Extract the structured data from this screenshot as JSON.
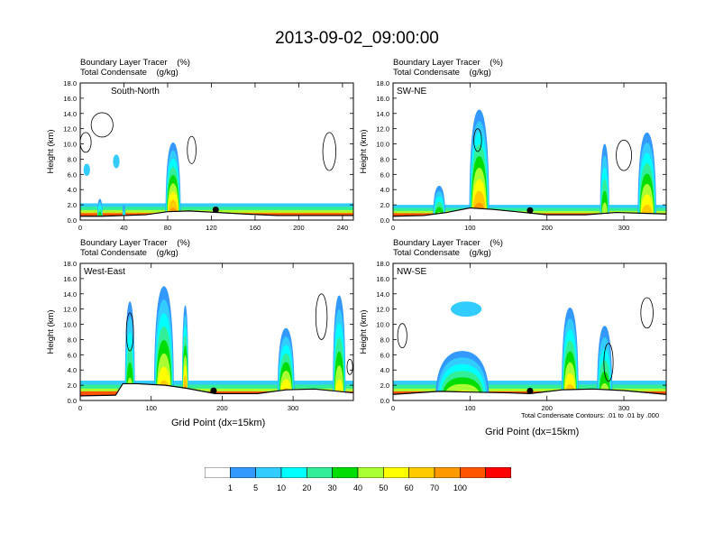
{
  "title": "2013-09-02_09:00:00",
  "chart_data": [
    {
      "type": "heatmap",
      "panel_label": "South-North",
      "header_line1": "Boundary Layer Tracer    (%)",
      "header_line2": "Total Condensate    (g/kg)",
      "ylabel": "Height (km)",
      "xlabel": "",
      "xlim": [
        0,
        250
      ],
      "ylim": [
        0,
        18
      ],
      "x_ticks": [
        0,
        40,
        80,
        120,
        160,
        200,
        240
      ],
      "y_ticks": [
        "0.0",
        "2.0",
        "4.0",
        "6.0",
        "8.0",
        "10.0",
        "12.0",
        "14.0",
        "16.0",
        "18.0"
      ],
      "terrain": [
        [
          0,
          0.5
        ],
        [
          20,
          0.5
        ],
        [
          40,
          0.6
        ],
        [
          60,
          0.7
        ],
        [
          80,
          1.1
        ],
        [
          100,
          1.2
        ],
        [
          125,
          1.0
        ],
        [
          150,
          0.8
        ],
        [
          180,
          0.6
        ],
        [
          210,
          0.6
        ],
        [
          250,
          0.6
        ]
      ],
      "plumes": [
        {
          "x": 85,
          "w": 14,
          "h": 10.2,
          "v": 70
        },
        {
          "x": 18,
          "w": 5,
          "h": 2.8,
          "v": 40
        },
        {
          "x": 40,
          "w": 3,
          "h": 2.0,
          "v": 20
        }
      ],
      "blobs": [
        {
          "x": 33,
          "y": 7.7,
          "w": 3,
          "h": 0.9,
          "v": 5
        },
        {
          "x": 6,
          "y": 6.6,
          "w": 3,
          "h": 0.8,
          "v": 5
        }
      ],
      "layer": {
        "h": 2.2,
        "dense_h": 0.9
      },
      "contours": [
        {
          "x": 20,
          "y": 12.5,
          "w": 10,
          "h": 1.6
        },
        {
          "x": 5,
          "y": 10.2,
          "w": 5,
          "h": 1.3
        },
        {
          "x": 228,
          "y": 9.0,
          "w": 6,
          "h": 2.5
        },
        {
          "x": 102,
          "y": 9.2,
          "w": 4,
          "h": 1.8
        }
      ],
      "marker_x": 124
    },
    {
      "type": "heatmap",
      "panel_label": "SW-NE",
      "header_line1": "Boundary Layer Tracer    (%)",
      "header_line2": "Total Condensate    (g/kg)",
      "ylabel": "Height (km)",
      "xlabel": "",
      "xlim": [
        0,
        355
      ],
      "ylim": [
        0,
        18
      ],
      "x_ticks": [
        0,
        100,
        200,
        300
      ],
      "y_ticks": [
        "0.0",
        "2.0",
        "4.0",
        "6.0",
        "8.0",
        "10.0",
        "12.0",
        "14.0",
        "16.0",
        "18.0"
      ],
      "terrain": [
        [
          0,
          0.5
        ],
        [
          40,
          0.6
        ],
        [
          70,
          1.0
        ],
        [
          100,
          1.6
        ],
        [
          130,
          1.4
        ],
        [
          160,
          1.1
        ],
        [
          200,
          0.7
        ],
        [
          250,
          0.7
        ],
        [
          290,
          1.0
        ],
        [
          355,
          0.8
        ]
      ],
      "plumes": [
        {
          "x": 112,
          "w": 26,
          "h": 14.5,
          "v": 70
        },
        {
          "x": 60,
          "w": 16,
          "h": 4.5,
          "v": 40
        },
        {
          "x": 275,
          "w": 12,
          "h": 10.0,
          "v": 40
        },
        {
          "x": 330,
          "w": 24,
          "h": 11.5,
          "v": 60
        }
      ],
      "blobs": [],
      "layer": {
        "h": 2.0,
        "dense_h": 0.9
      },
      "contours": [
        {
          "x": 300,
          "y": 8.5,
          "w": 10,
          "h": 2.0
        },
        {
          "x": 110,
          "y": 10.5,
          "w": 5,
          "h": 1.5
        }
      ],
      "marker_x": 178
    },
    {
      "type": "heatmap",
      "panel_label": "West-East",
      "header_line1": "Boundary Layer Tracer    (%)",
      "header_line2": "Total Condensate    (g/kg)",
      "ylabel": "Height (km)",
      "xlabel": "Grid Point (dx=15km)",
      "xlim": [
        0,
        385
      ],
      "ylim": [
        0,
        18
      ],
      "x_ticks": [
        0,
        100,
        200,
        300
      ],
      "y_ticks": [
        "0.0",
        "2.0",
        "4.0",
        "6.0",
        "8.0",
        "10.0",
        "12.0",
        "14.0",
        "16.0",
        "18.0"
      ],
      "terrain": [
        [
          0,
          0.6
        ],
        [
          50,
          0.7
        ],
        [
          60,
          2.2
        ],
        [
          80,
          2.2
        ],
        [
          120,
          2.0
        ],
        [
          150,
          1.6
        ],
        [
          190,
          0.9
        ],
        [
          250,
          0.9
        ],
        [
          290,
          1.4
        ],
        [
          330,
          1.5
        ],
        [
          385,
          1.0
        ]
      ],
      "plumes": [
        {
          "x": 118,
          "w": 28,
          "h": 15.0,
          "v": 60
        },
        {
          "x": 70,
          "w": 14,
          "h": 13.0,
          "v": 40
        },
        {
          "x": 148,
          "w": 9,
          "h": 12.5,
          "v": 70
        },
        {
          "x": 290,
          "w": 24,
          "h": 9.5,
          "v": 60
        },
        {
          "x": 365,
          "w": 18,
          "h": 13.8,
          "v": 50
        }
      ],
      "blobs": [],
      "layer": {
        "h": 2.6,
        "dense_h": 1.2
      },
      "contours": [
        {
          "x": 340,
          "y": 11.0,
          "w": 8,
          "h": 3.0
        },
        {
          "x": 70,
          "y": 9.0,
          "w": 5,
          "h": 2.5
        },
        {
          "x": 380,
          "y": 4.4,
          "w": 4,
          "h": 1.0
        }
      ],
      "marker_x": 188
    },
    {
      "type": "heatmap",
      "panel_label": "NW-SE",
      "header_line1": "Boundary Layer Tracer    (%)",
      "header_line2": "Total Condensate    (g/kg)",
      "ylabel": "Height (km)",
      "xlabel": "Grid Point (dx=15km)",
      "xlim": [
        0,
        355
      ],
      "ylim": [
        0,
        18
      ],
      "x_ticks": [
        0,
        100,
        200,
        300
      ],
      "y_ticks": [
        "0.0",
        "2.0",
        "4.0",
        "6.0",
        "8.0",
        "10.0",
        "12.0",
        "14.0",
        "16.0",
        "18.0"
      ],
      "terrain": [
        [
          0,
          0.8
        ],
        [
          60,
          1.2
        ],
        [
          100,
          1.1
        ],
        [
          150,
          1.0
        ],
        [
          178,
          0.9
        ],
        [
          220,
          1.4
        ],
        [
          260,
          1.5
        ],
        [
          300,
          1.3
        ],
        [
          355,
          0.8
        ]
      ],
      "plumes": [
        {
          "x": 90,
          "w": 70,
          "h": 6.5,
          "v": 50
        },
        {
          "x": 230,
          "w": 22,
          "h": 12.2,
          "v": 60
        },
        {
          "x": 275,
          "w": 20,
          "h": 9.8,
          "v": 40
        }
      ],
      "blobs": [
        {
          "x": 95,
          "y": 12.0,
          "w": 20,
          "h": 1.0,
          "v": 5
        }
      ],
      "layer": {
        "h": 2.6,
        "dense_h": 1.2
      },
      "contours": [
        {
          "x": 12,
          "y": 8.5,
          "w": 6,
          "h": 1.6
        },
        {
          "x": 330,
          "y": 11.5,
          "w": 8,
          "h": 2.0
        },
        {
          "x": 280,
          "y": 5.0,
          "w": 6,
          "h": 2.5
        }
      ],
      "marker_x": 178
    }
  ],
  "footnote": "Total Condensate Contours: .01 to .01 by .000",
  "colorbar": {
    "colors": [
      "#ffffff",
      "#3399ff",
      "#33ccff",
      "#00ffff",
      "#33ee99",
      "#00dd00",
      "#aaff33",
      "#ffff00",
      "#ffcc00",
      "#ff9900",
      "#ff5500",
      "#ff0000"
    ],
    "labels": [
      "1",
      "5",
      "10",
      "20",
      "30",
      "40",
      "50",
      "60",
      "70",
      "100"
    ]
  },
  "level_colors": {
    "1": "#3399ff",
    "5": "#33ccff",
    "10": "#00ffff",
    "20": "#33ee99",
    "30": "#00dd00",
    "40": "#aaff33",
    "50": "#ffff00",
    "60": "#ffcc00",
    "70": "#ff9900",
    "80": "#ff5500",
    "100": "#ff0000"
  }
}
